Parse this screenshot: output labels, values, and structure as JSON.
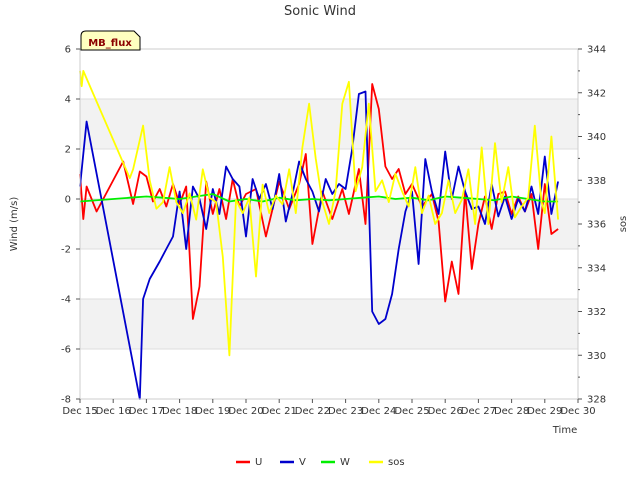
{
  "chart_data": {
    "type": "line",
    "title": "Sonic Wind",
    "xlabel": "Time",
    "ylabel": "Wind (m/s)",
    "y2label": "sos",
    "badge": "MB_flux",
    "xlim": [
      15,
      30
    ],
    "ylim": [
      -8,
      6
    ],
    "y2lim": [
      328,
      344
    ],
    "x_ticks": [
      {
        "value": 15,
        "label": "Dec 15"
      },
      {
        "value": 16,
        "label": "Dec 16"
      },
      {
        "value": 17,
        "label": "Dec 17"
      },
      {
        "value": 18,
        "label": "Dec 18"
      },
      {
        "value": 19,
        "label": "Dec 19"
      },
      {
        "value": 20,
        "label": "Dec 20"
      },
      {
        "value": 21,
        "label": "Dec 21"
      },
      {
        "value": 22,
        "label": "Dec 22"
      },
      {
        "value": 23,
        "label": "Dec 23"
      },
      {
        "value": 24,
        "label": "Dec 24"
      },
      {
        "value": 25,
        "label": "Dec 25"
      },
      {
        "value": 26,
        "label": "Dec 26"
      },
      {
        "value": 27,
        "label": "Dec 27"
      },
      {
        "value": 28,
        "label": "Dec 28"
      },
      {
        "value": 29,
        "label": "Dec 29"
      },
      {
        "value": 30,
        "label": "Dec 30"
      }
    ],
    "y_ticks": [
      -8,
      -6,
      -4,
      -2,
      0,
      2,
      4,
      6
    ],
    "y2_ticks": [
      328,
      330,
      332,
      334,
      336,
      338,
      340,
      342,
      344
    ],
    "series": [
      {
        "name": "U",
        "color": "#ff0000",
        "axis": "left",
        "x": [
          15.0,
          15.1,
          15.2,
          15.5,
          16.3,
          16.6,
          16.8,
          17.0,
          17.2,
          17.4,
          17.6,
          17.8,
          18.0,
          18.2,
          18.4,
          18.6,
          18.8,
          19.0,
          19.2,
          19.4,
          19.6,
          19.8,
          20.0,
          20.3,
          20.6,
          21.0,
          21.3,
          21.6,
          21.8,
          22.0,
          22.3,
          22.6,
          22.9,
          23.1,
          23.4,
          23.6,
          23.8,
          24.0,
          24.2,
          24.4,
          24.6,
          24.8,
          25.0,
          25.3,
          25.6,
          25.8,
          26.0,
          26.2,
          26.4,
          26.6,
          26.8,
          27.0,
          27.2,
          27.4,
          27.6,
          27.8,
          28.0,
          28.2,
          28.4,
          28.6,
          28.8,
          29.0,
          29.2,
          29.4
        ],
        "y": [
          1.0,
          -0.8,
          0.5,
          -0.5,
          1.5,
          -0.2,
          1.1,
          0.9,
          -0.1,
          0.4,
          -0.3,
          0.6,
          -0.2,
          0.5,
          -4.8,
          -3.5,
          0.7,
          -0.6,
          0.4,
          -0.8,
          0.8,
          -0.3,
          0.2,
          0.4,
          -1.5,
          0.7,
          -0.4,
          0.6,
          1.8,
          -1.8,
          0.3,
          -0.8,
          0.4,
          -0.6,
          1.2,
          -1.0,
          4.6,
          3.6,
          1.3,
          0.8,
          1.2,
          0.2,
          0.6,
          -0.3,
          0.2,
          -0.9,
          -4.1,
          -2.5,
          -3.8,
          0.3,
          -2.8,
          -1.0,
          0.1,
          -1.2,
          0.2,
          0.3,
          -0.6,
          0.1,
          -0.5,
          0.2,
          -2.0,
          0.6,
          -1.4,
          -1.2
        ]
      },
      {
        "name": "V",
        "color": "#0000cc",
        "axis": "left",
        "x": [
          15.0,
          15.2,
          16.8,
          16.9,
          17.1,
          17.4,
          17.6,
          17.8,
          18.0,
          18.2,
          18.4,
          18.6,
          18.8,
          19.0,
          19.2,
          19.4,
          19.6,
          19.8,
          20.0,
          20.2,
          20.4,
          20.6,
          20.8,
          21.0,
          21.2,
          21.4,
          21.6,
          21.8,
          22.0,
          22.2,
          22.4,
          22.6,
          22.8,
          23.0,
          23.2,
          23.4,
          23.6,
          23.8,
          24.0,
          24.2,
          24.4,
          24.6,
          24.8,
          25.0,
          25.2,
          25.4,
          25.6,
          25.8,
          26.0,
          26.2,
          26.4,
          26.6,
          26.8,
          27.0,
          27.2,
          27.4,
          27.6,
          27.8,
          28.0,
          28.2,
          28.4,
          28.6,
          28.8,
          29.0,
          29.2,
          29.4
        ],
        "y": [
          0.5,
          3.1,
          -8.0,
          -4.0,
          -3.2,
          -2.5,
          -2.0,
          -1.5,
          0.3,
          -2.0,
          0.5,
          0.0,
          -1.2,
          0.4,
          -0.6,
          1.3,
          0.8,
          0.5,
          -1.5,
          0.8,
          0.0,
          0.6,
          -0.4,
          1.0,
          -0.9,
          0.2,
          1.5,
          0.8,
          0.3,
          -0.5,
          0.8,
          0.2,
          0.6,
          0.4,
          2.0,
          4.2,
          4.3,
          -4.5,
          -5.0,
          -4.8,
          -3.8,
          -2.0,
          -0.5,
          0.3,
          -2.6,
          1.6,
          0.3,
          -0.6,
          1.9,
          0.0,
          1.3,
          0.3,
          -0.4,
          -0.3,
          -1.0,
          0.6,
          -0.7,
          0.1,
          -0.8,
          0.0,
          -0.5,
          0.5,
          -0.6,
          1.7,
          -0.6,
          0.7
        ]
      },
      {
        "name": "W",
        "color": "#00ee00",
        "axis": "left",
        "x": [
          15.0,
          16.0,
          16.5,
          17.0,
          17.5,
          18.0,
          18.5,
          19.0,
          19.5,
          20.0,
          20.5,
          21.0,
          21.5,
          22.0,
          22.5,
          23.0,
          23.5,
          24.0,
          24.5,
          25.0,
          25.5,
          26.0,
          26.5,
          27.0,
          27.5,
          28.0,
          28.5,
          29.0,
          29.4
        ],
        "y": [
          -0.1,
          0.0,
          0.05,
          0.1,
          0.05,
          0.0,
          0.1,
          0.2,
          -0.1,
          0.0,
          -0.1,
          0.05,
          -0.05,
          0.0,
          -0.05,
          0.0,
          0.05,
          0.1,
          0.0,
          0.05,
          -0.05,
          0.1,
          0.05,
          0.0,
          -0.05,
          0.1,
          0.0,
          -0.1,
          -0.1
        ]
      },
      {
        "name": "sos",
        "color": "#ffff00",
        "axis": "right",
        "x": [
          15.0,
          15.05,
          15.1,
          16.5,
          16.6,
          16.9,
          17.1,
          17.3,
          17.5,
          17.7,
          17.9,
          18.1,
          18.3,
          18.5,
          18.7,
          18.9,
          19.1,
          19.3,
          19.5,
          19.7,
          19.9,
          20.1,
          20.3,
          20.5,
          20.7,
          20.9,
          21.1,
          21.3,
          21.5,
          21.7,
          21.9,
          22.1,
          22.3,
          22.5,
          22.7,
          22.9,
          23.1,
          23.3,
          23.5,
          23.7,
          23.9,
          24.1,
          24.3,
          24.5,
          24.7,
          24.9,
          25.1,
          25.3,
          25.5,
          25.7,
          25.9,
          26.1,
          26.3,
          26.5,
          26.7,
          26.9,
          27.1,
          27.3,
          27.5,
          27.7,
          27.9,
          28.1,
          28.3,
          28.5,
          28.7,
          28.9,
          29.0,
          29.2,
          29.4
        ],
        "y": [
          343.0,
          342.3,
          343.0,
          338.1,
          338.5,
          340.5,
          338.0,
          336.7,
          337.0,
          338.6,
          337.0,
          336.5,
          337.4,
          336.2,
          338.5,
          337.2,
          337.0,
          334.5,
          330.0,
          337.1,
          336.5,
          337.2,
          333.6,
          337.8,
          336.5,
          337.3,
          336.9,
          338.5,
          336.5,
          339.5,
          341.5,
          339.0,
          337.0,
          336.0,
          337.5,
          341.5,
          342.5,
          337.5,
          338.6,
          341.5,
          337.5,
          338.0,
          337.0,
          338.3,
          337.5,
          336.8,
          338.6,
          336.5,
          337.3,
          336.0,
          336.5,
          338.0,
          336.5,
          337.1,
          338.5,
          336.0,
          339.5,
          336.0,
          339.7,
          337.0,
          338.6,
          336.3,
          336.8,
          337.2,
          340.5,
          337.0,
          336.5,
          340.0,
          336.2
        ]
      }
    ]
  }
}
